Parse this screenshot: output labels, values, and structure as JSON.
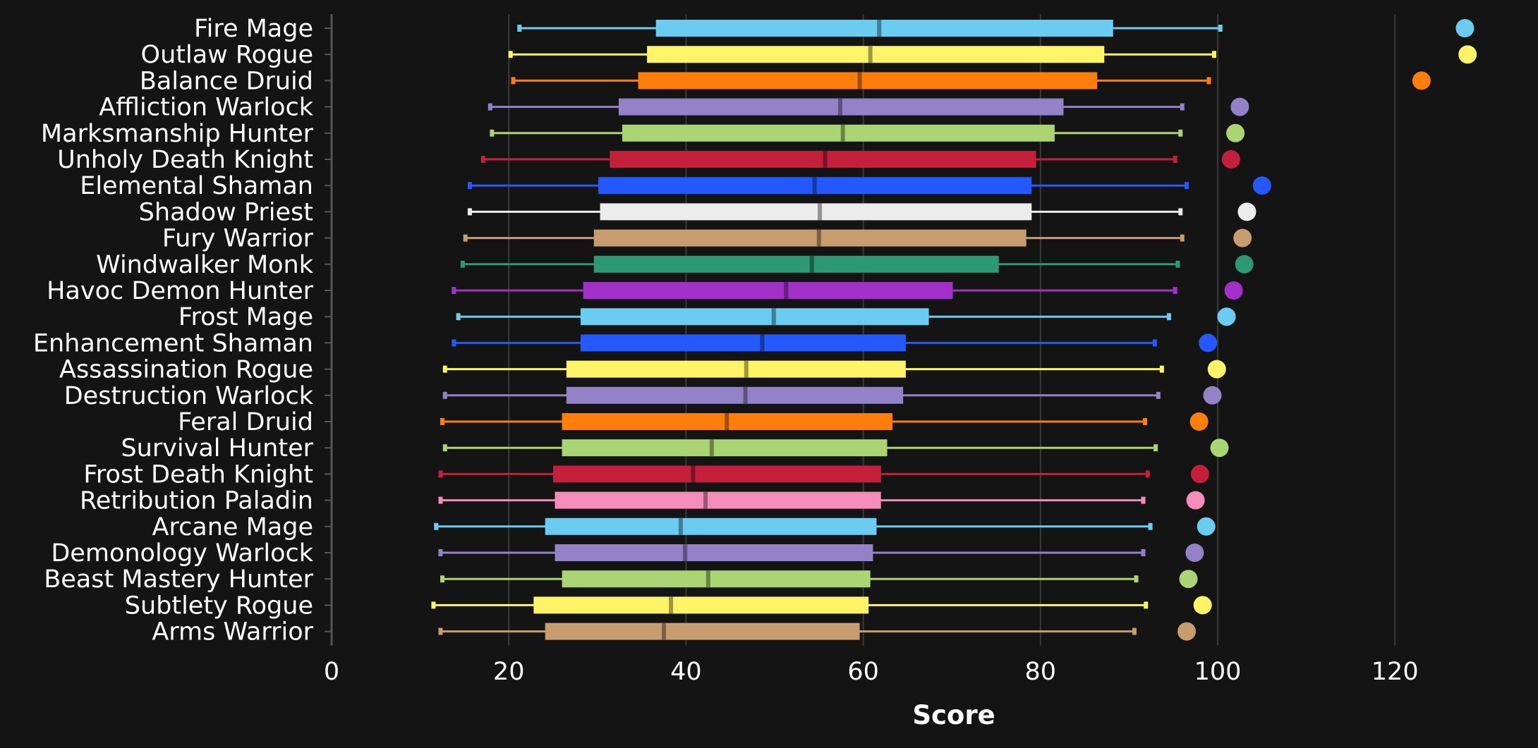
{
  "chart_data": {
    "type": "box",
    "xlabel": "Score",
    "xlim": [
      0,
      130
    ],
    "x_ticks": [
      0,
      20,
      40,
      60,
      80,
      100,
      120
    ],
    "grid": "vertical",
    "orientation": "horizontal",
    "categories": [
      "Fire Mage",
      "Outlaw Rogue",
      "Balance Druid",
      "Affliction Warlock",
      "Marksmanship Hunter",
      "Unholy Death Knight",
      "Elemental Shaman",
      "Shadow Priest",
      "Fury Warrior",
      "Windwalker Monk",
      "Havoc Demon Hunter",
      "Frost Mage",
      "Enhancement Shaman",
      "Assassination Rogue",
      "Destruction Warlock",
      "Feral Druid",
      "Survival Hunter",
      "Frost Death Knight",
      "Retribution Paladin",
      "Arcane Mage",
      "Demonology Warlock",
      "Beast Mastery Hunter",
      "Subtlety Rogue",
      "Arms Warrior"
    ],
    "boxes": [
      {
        "min": 21.2,
        "q1": 36.6,
        "median": 61.8,
        "q3": 88.2,
        "max": 100.3,
        "outlier": 127.9,
        "color": "#69ccf0"
      },
      {
        "min": 20.2,
        "q1": 35.6,
        "median": 60.8,
        "q3": 87.2,
        "max": 99.6,
        "outlier": 128.2,
        "color": "#fff468"
      },
      {
        "min": 20.5,
        "q1": 34.6,
        "median": 59.6,
        "q3": 86.4,
        "max": 99.0,
        "outlier": 123.0,
        "color": "#ff7d0a"
      },
      {
        "min": 17.9,
        "q1": 32.4,
        "median": 57.4,
        "q3": 82.6,
        "max": 96.0,
        "outlier": 102.5,
        "color": "#9482c9"
      },
      {
        "min": 18.1,
        "q1": 32.8,
        "median": 57.7,
        "q3": 81.6,
        "max": 95.8,
        "outlier": 102.0,
        "color": "#abd473"
      },
      {
        "min": 17.1,
        "q1": 31.4,
        "median": 55.7,
        "q3": 79.5,
        "max": 95.2,
        "outlier": 101.5,
        "color": "#c41f3b"
      },
      {
        "min": 15.6,
        "q1": 30.1,
        "median": 54.5,
        "q3": 79.0,
        "max": 96.5,
        "outlier": 105.0,
        "color": "#2459ff"
      },
      {
        "min": 15.6,
        "q1": 30.3,
        "median": 55.1,
        "q3": 79.0,
        "max": 95.8,
        "outlier": 103.3,
        "color": "#ececec"
      },
      {
        "min": 15.1,
        "q1": 29.6,
        "median": 55.0,
        "q3": 78.4,
        "max": 96.0,
        "outlier": 102.8,
        "color": "#c79c6e"
      },
      {
        "min": 14.8,
        "q1": 29.6,
        "median": 54.2,
        "q3": 75.3,
        "max": 95.5,
        "outlier": 103.0,
        "color": "#2d9974"
      },
      {
        "min": 13.8,
        "q1": 28.4,
        "median": 51.3,
        "q3": 70.1,
        "max": 95.2,
        "outlier": 101.8,
        "color": "#a330c9"
      },
      {
        "min": 14.3,
        "q1": 28.1,
        "median": 49.9,
        "q3": 67.4,
        "max": 94.5,
        "outlier": 101.0,
        "color": "#69ccf0"
      },
      {
        "min": 13.8,
        "q1": 28.1,
        "median": 48.6,
        "q3": 64.8,
        "max": 92.9,
        "outlier": 98.9,
        "color": "#2459ff"
      },
      {
        "min": 12.8,
        "q1": 26.5,
        "median": 46.8,
        "q3": 64.8,
        "max": 93.7,
        "outlier": 99.9,
        "color": "#fff468"
      },
      {
        "min": 12.8,
        "q1": 26.5,
        "median": 46.7,
        "q3": 64.5,
        "max": 93.3,
        "outlier": 99.4,
        "color": "#9482c9"
      },
      {
        "min": 12.5,
        "q1": 26.0,
        "median": 44.6,
        "q3": 63.3,
        "max": 91.8,
        "outlier": 97.9,
        "color": "#ff7d0a"
      },
      {
        "min": 12.8,
        "q1": 26.0,
        "median": 42.9,
        "q3": 62.7,
        "max": 93.0,
        "outlier": 100.2,
        "color": "#abd473"
      },
      {
        "min": 12.3,
        "q1": 25.0,
        "median": 40.8,
        "q3": 62.0,
        "max": 92.1,
        "outlier": 98.0,
        "color": "#c41f3b"
      },
      {
        "min": 12.3,
        "q1": 25.2,
        "median": 42.2,
        "q3": 62.0,
        "max": 91.6,
        "outlier": 97.5,
        "color": "#f58cba"
      },
      {
        "min": 11.8,
        "q1": 24.1,
        "median": 39.4,
        "q3": 61.5,
        "max": 92.4,
        "outlier": 98.7,
        "color": "#69ccf0"
      },
      {
        "min": 12.3,
        "q1": 25.2,
        "median": 39.9,
        "q3": 61.1,
        "max": 91.6,
        "outlier": 97.4,
        "color": "#9482c9"
      },
      {
        "min": 12.5,
        "q1": 26.0,
        "median": 42.5,
        "q3": 60.8,
        "max": 90.8,
        "outlier": 96.7,
        "color": "#abd473"
      },
      {
        "min": 11.5,
        "q1": 22.8,
        "median": 38.3,
        "q3": 60.6,
        "max": 91.9,
        "outlier": 98.3,
        "color": "#fff468"
      },
      {
        "min": 12.3,
        "q1": 24.1,
        "median": 37.5,
        "q3": 59.6,
        "max": 90.6,
        "outlier": 96.5,
        "color": "#c79c6e"
      }
    ]
  }
}
